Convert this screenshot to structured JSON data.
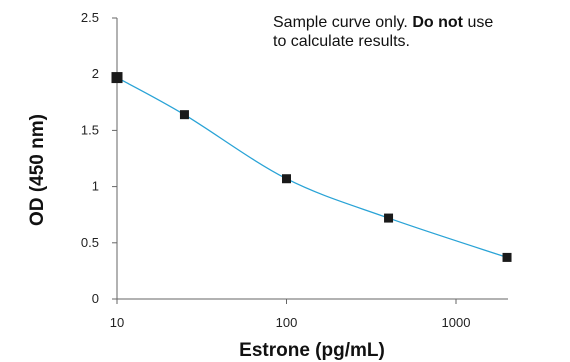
{
  "chart_data": {
    "type": "line",
    "xscale": "log",
    "xlabel": "Estrone (pg/mL)",
    "ylabel": "OD (450 nm)",
    "xlim": [
      10,
      2000
    ],
    "ylim": [
      0,
      2.5
    ],
    "x_ticks": [
      10,
      100,
      1000
    ],
    "x_tick_labels": [
      "10",
      "100",
      "1000"
    ],
    "y_ticks": [
      0,
      0.5,
      1,
      1.5,
      2,
      2.5
    ],
    "y_tick_labels": [
      "0",
      "0.5",
      "1",
      "1.5",
      "2",
      "2.5"
    ],
    "grid": false,
    "series": [
      {
        "x": [
          10,
          25,
          100,
          400,
          2000
        ],
        "y": [
          1.97,
          1.64,
          1.07,
          0.72,
          0.37
        ],
        "line_color": "#29a3d6",
        "marker": "square",
        "marker_color": "#1a1a1a"
      }
    ],
    "annotation": {
      "line1_before": "Sample curve only.",
      "line1_bold": "Do not",
      "line1_after": "use",
      "line2": "to calculate results."
    }
  }
}
